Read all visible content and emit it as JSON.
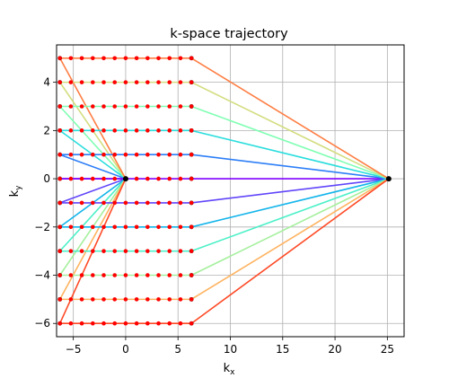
{
  "chart_data": {
    "type": "line",
    "title": "k-space trajectory",
    "xlabel_main": "k",
    "xlabel_sub": "x",
    "ylabel_main": "k",
    "ylabel_sub": "y",
    "xlim": [
      -6.6,
      26.6
    ],
    "ylim": [
      -6.55,
      5.55
    ],
    "grid": true,
    "x_ticks": [
      -5,
      0,
      5,
      10,
      15,
      20,
      25
    ],
    "x_tick_labels": [
      "−5",
      "0",
      "5",
      "10",
      "15",
      "20",
      "25"
    ],
    "y_ticks": [
      -6,
      -4,
      -2,
      0,
      2,
      4
    ],
    "y_tick_labels": [
      "−6",
      "−4",
      "−2",
      "0",
      "2",
      "4"
    ],
    "readout": {
      "x_min": -6.283,
      "x_max": 6.283,
      "ky_rows": [
        5,
        4,
        3,
        2,
        1,
        0,
        -1,
        -2,
        -3,
        -4,
        -5,
        -6
      ],
      "samples_per_row": 13,
      "sample_color": "#ff0000"
    },
    "center_point": [
      0,
      0
    ],
    "rewinder_point": [
      25.13,
      0
    ],
    "endpoint_color": "#000000",
    "series": [
      {
        "name": "ky=0",
        "ky": 0,
        "color": "#8000ff"
      },
      {
        "name": "ky=1",
        "ky": 1,
        "color": "#2c7ef7"
      },
      {
        "name": "ky=-1",
        "ky": -1,
        "color": "#6045fa"
      },
      {
        "name": "ky=2",
        "ky": 2,
        "color": "#2adddd"
      },
      {
        "name": "ky=-2",
        "ky": -2,
        "color": "#14b5eb"
      },
      {
        "name": "ky=3",
        "ky": 3,
        "color": "#80ffb4"
      },
      {
        "name": "ky=-3",
        "ky": -3,
        "color": "#4cf0c8"
      },
      {
        "name": "ky=4",
        "ky": 4,
        "color": "#d4dd80"
      },
      {
        "name": "ky=-4",
        "ky": -4,
        "color": "#a6f09e"
      },
      {
        "name": "ky=5",
        "ky": 5,
        "color": "#ff7e44"
      },
      {
        "name": "ky=-5",
        "ky": -5,
        "color": "#ffb360"
      },
      {
        "name": "ky=-6",
        "ky": -6,
        "color": "#ff4a26"
      }
    ]
  }
}
